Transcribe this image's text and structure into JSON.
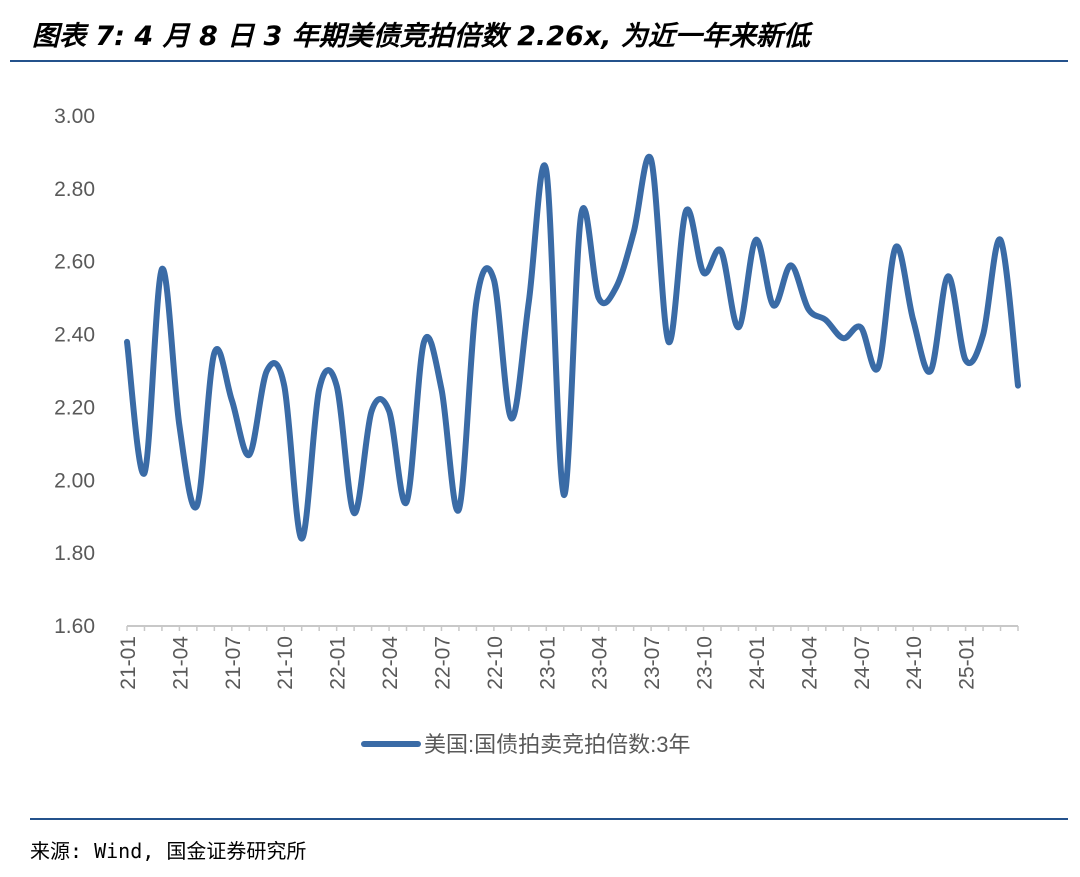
{
  "page": {
    "title": "图表 7: 4 月 8 日 3 年期美债竞拍倍数 2.26x, 为近一年来新低",
    "source": "来源: Wind, 国金证券研究所"
  },
  "colors": {
    "series": "#3a6ba6",
    "rule": "#24528c",
    "axis": "#c8c8c8",
    "tick_text": "#595959"
  },
  "chart_data": {
    "type": "line",
    "title": "",
    "xlabel": "",
    "ylabel": "",
    "ylim": [
      1.6,
      3.0
    ],
    "yticks": [
      1.6,
      1.8,
      2.0,
      2.2,
      2.4,
      2.6,
      2.8,
      3.0
    ],
    "ytick_labels": [
      "1.60",
      "1.80",
      "2.00",
      "2.20",
      "2.40",
      "2.60",
      "2.80",
      "3.00"
    ],
    "xlim": [
      0,
      51
    ],
    "xtick_labels": [
      "21-01",
      "21-04",
      "21-07",
      "21-10",
      "22-01",
      "22-04",
      "22-07",
      "22-10",
      "23-01",
      "23-04",
      "23-07",
      "23-10",
      "24-01",
      "24-04",
      "24-07",
      "24-10",
      "25-01"
    ],
    "grid": false,
    "legend": "bottom",
    "series": [
      {
        "name": "美国:国债拍卖竞拍倍数:3年",
        "x": [
          "21-01",
          "21-02",
          "21-03",
          "21-04",
          "21-05",
          "21-06",
          "21-07",
          "21-08",
          "21-09",
          "21-10",
          "21-11",
          "21-12",
          "22-01",
          "22-02",
          "22-03",
          "22-04",
          "22-05",
          "22-06",
          "22-07",
          "22-08",
          "22-09",
          "22-10",
          "22-11",
          "22-12",
          "23-01",
          "23-02",
          "23-03",
          "23-04",
          "23-05",
          "23-06",
          "23-07",
          "23-08",
          "23-09",
          "23-10",
          "23-11",
          "23-12",
          "24-01",
          "24-02",
          "24-03",
          "24-04",
          "24-05",
          "24-06",
          "24-07",
          "24-08",
          "24-09",
          "24-10",
          "24-11",
          "24-12",
          "25-01",
          "25-02",
          "25-03",
          "25-04"
        ],
        "values": [
          2.38,
          2.02,
          2.58,
          2.15,
          1.93,
          2.35,
          2.22,
          2.07,
          2.3,
          2.26,
          1.84,
          2.25,
          2.26,
          1.91,
          2.19,
          2.19,
          1.94,
          2.38,
          2.25,
          1.92,
          2.49,
          2.55,
          2.17,
          2.49,
          2.85,
          1.96,
          2.73,
          2.5,
          2.53,
          2.68,
          2.88,
          2.38,
          2.74,
          2.57,
          2.63,
          2.42,
          2.66,
          2.48,
          2.59,
          2.47,
          2.44,
          2.39,
          2.42,
          2.31,
          2.64,
          2.44,
          2.3,
          2.56,
          2.33,
          2.4,
          2.66,
          2.26
        ]
      }
    ]
  }
}
